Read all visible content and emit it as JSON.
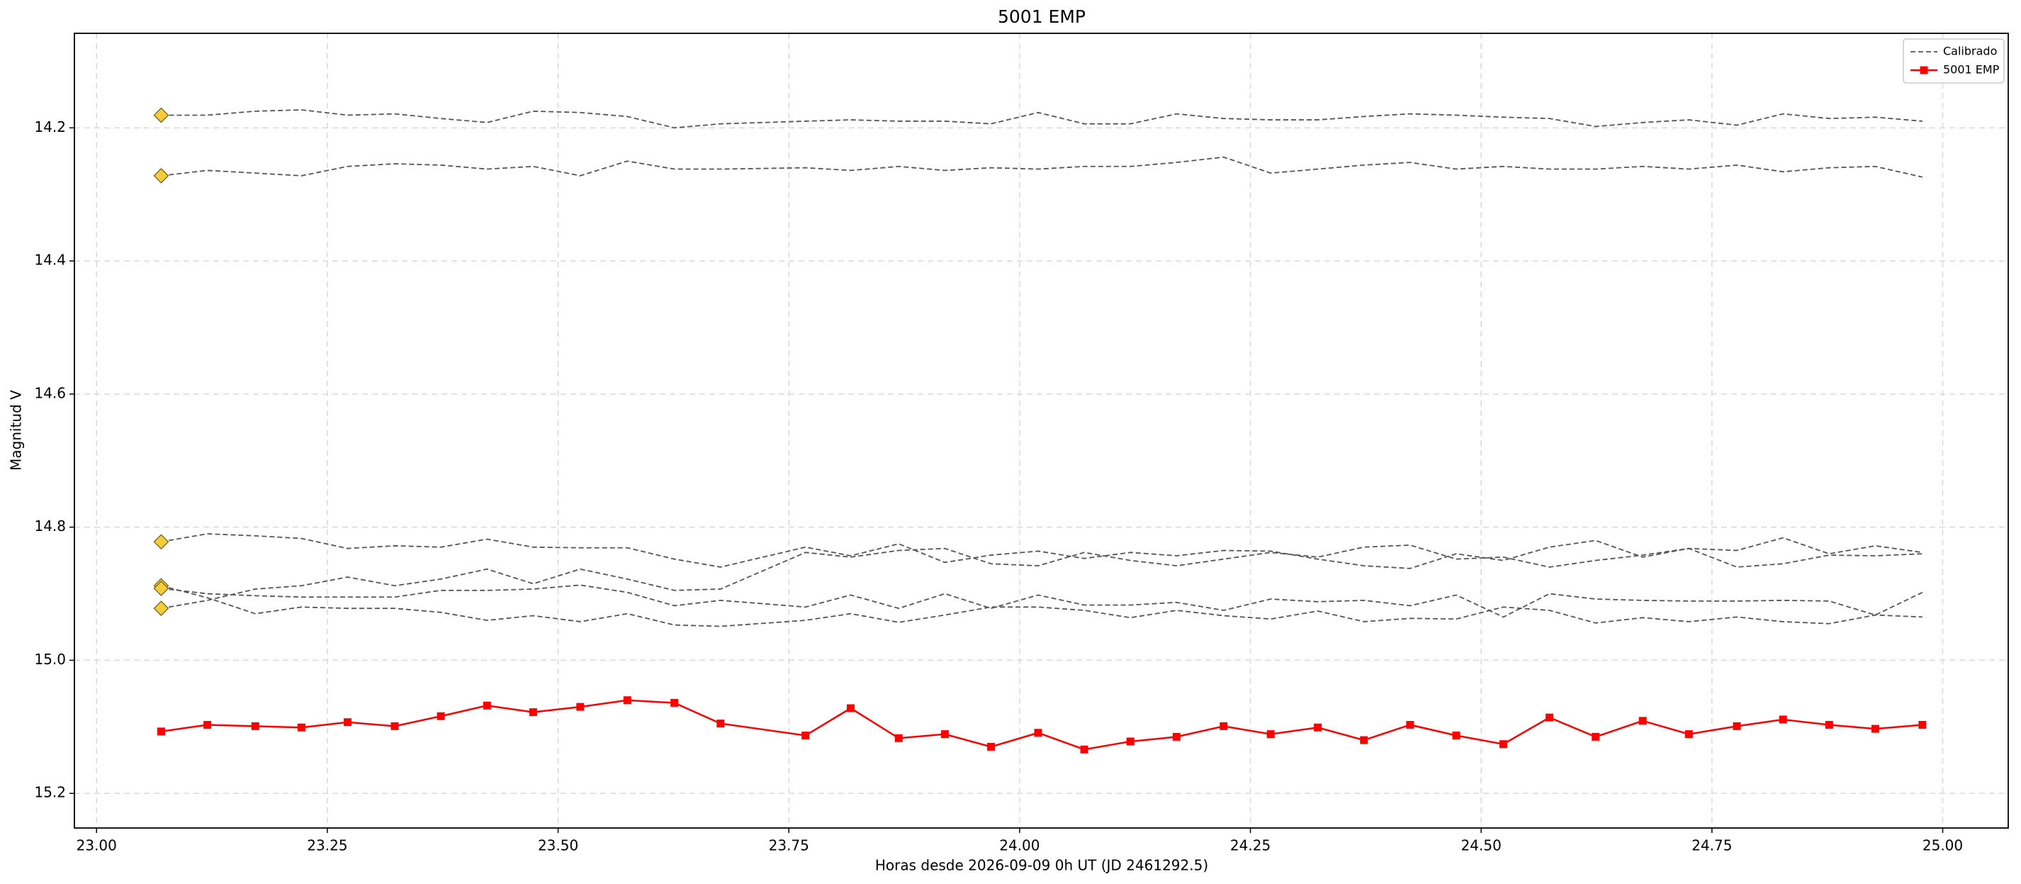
{
  "chart_data": {
    "type": "line",
    "title": "5001 EMP",
    "x_label": "Horas desde 2026-09-09 0h UT (JD 2461292.5)",
    "y_label": "Magnitud V",
    "xlim": [
      22.976,
      25.071
    ],
    "ylim": [
      14.058,
      15.252
    ],
    "y_inverted": true,
    "grid": true,
    "legend": "upper right",
    "xticks": [
      {
        "value": 23,
        "label": "23.00"
      },
      {
        "value": 23.25,
        "label": "23.25"
      },
      {
        "value": 23.5,
        "label": "23.50"
      },
      {
        "value": 23.75,
        "label": "23.75"
      },
      {
        "value": 24,
        "label": "24.00"
      },
      {
        "value": 24.25,
        "label": "24.25"
      },
      {
        "value": 24.5,
        "label": "24.50"
      },
      {
        "value": 24.75,
        "label": "24.75"
      },
      {
        "value": 25,
        "label": "25.00"
      }
    ],
    "yticks": [
      14.2,
      14.4,
      14.6,
      14.8,
      {
        "value": 15,
        "label": "15.0"
      },
      15.2
    ],
    "x": [
      23.07,
      23.12,
      23.172,
      23.222,
      23.272,
      23.323,
      23.373,
      23.423,
      23.473,
      23.524,
      23.575,
      23.626,
      23.676,
      23.768,
      23.817,
      23.869,
      23.919,
      23.969,
      24.02,
      24.07,
      24.12,
      24.17,
      24.221,
      24.272,
      24.323,
      24.373,
      24.423,
      24.473,
      24.524,
      24.574,
      24.624,
      24.675,
      24.725,
      24.777,
      24.827,
      24.877,
      24.927,
      24.978
    ],
    "series": [
      {
        "name": "Calibrado",
        "color": "#555555",
        "dashed": true,
        "start_marker_color": "#f5cd3a",
        "lines": [
          [
            14.181,
            14.181,
            14.175,
            14.173,
            14.181,
            14.179,
            14.186,
            14.192,
            14.175,
            14.177,
            14.183,
            14.2,
            14.194,
            14.19,
            14.188,
            14.19,
            14.19,
            14.194,
            14.177,
            14.194,
            14.194,
            14.179,
            14.186,
            14.188,
            14.188,
            14.183,
            14.179,
            14.181,
            14.184,
            14.186,
            14.198,
            14.192,
            14.188,
            14.196,
            14.179,
            14.186,
            14.184,
            14.19
          ],
          [
            14.272,
            14.264,
            14.268,
            14.272,
            14.258,
            14.254,
            14.256,
            14.262,
            14.258,
            14.272,
            14.25,
            14.262,
            14.262,
            14.26,
            14.264,
            14.258,
            14.264,
            14.26,
            14.262,
            14.258,
            14.258,
            14.252,
            14.244,
            14.268,
            14.262,
            14.256,
            14.252,
            14.262,
            14.258,
            14.262,
            14.262,
            14.258,
            14.262,
            14.256,
            14.266,
            14.26,
            14.258,
            14.274
          ],
          [
            14.822,
            14.81,
            14.813,
            14.817,
            14.832,
            14.828,
            14.83,
            14.818,
            14.83,
            14.831,
            14.831,
            14.848,
            14.86,
            14.83,
            14.843,
            14.825,
            14.853,
            14.842,
            14.836,
            14.847,
            14.838,
            14.843,
            14.835,
            14.836,
            14.848,
            14.858,
            14.862,
            14.84,
            14.85,
            14.83,
            14.82,
            14.845,
            14.832,
            14.835,
            14.816,
            14.84,
            14.828,
            14.838
          ],
          [
            14.888,
            14.906,
            14.93,
            14.92,
            14.922,
            14.922,
            14.928,
            14.94,
            14.933,
            14.942,
            14.93,
            14.947,
            14.949,
            14.94,
            14.93,
            14.943,
            14.932,
            14.92,
            14.92,
            14.925,
            14.936,
            14.925,
            14.933,
            14.938,
            14.926,
            14.942,
            14.937,
            14.938,
            14.92,
            14.925,
            14.944,
            14.936,
            14.942,
            14.935,
            14.942,
            14.945,
            14.932,
            14.935
          ],
          [
            14.892,
            14.9,
            14.903,
            14.905,
            14.905,
            14.905,
            14.895,
            14.895,
            14.893,
            14.887,
            14.898,
            14.918,
            14.91,
            14.92,
            14.902,
            14.922,
            14.9,
            14.922,
            14.902,
            14.917,
            14.917,
            14.913,
            14.925,
            14.908,
            14.912,
            14.91,
            14.918,
            14.902,
            14.935,
            14.9,
            14.908,
            14.91,
            14.911,
            14.911,
            14.91,
            14.911,
            14.932,
            14.898
          ],
          [
            14.922,
            14.91,
            14.893,
            14.888,
            14.875,
            14.888,
            14.878,
            14.863,
            14.885,
            14.863,
            14.878,
            14.895,
            14.893,
            14.838,
            14.845,
            14.835,
            14.832,
            14.855,
            14.858,
            14.838,
            14.85,
            14.858,
            14.848,
            14.838,
            14.845,
            14.83,
            14.827,
            14.848,
            14.845,
            14.86,
            14.85,
            14.842,
            14.832,
            14.86,
            14.855,
            14.842,
            14.843,
            14.84
          ]
        ]
      },
      {
        "name": "5001 EMP",
        "color": "#ff0000",
        "marker": "square",
        "values": [
          15.107,
          15.097,
          15.099,
          15.101,
          15.093,
          15.099,
          15.084,
          15.068,
          15.078,
          15.07,
          15.06,
          15.064,
          15.095,
          15.113,
          15.072,
          15.117,
          15.111,
          15.13,
          15.109,
          15.134,
          15.122,
          15.115,
          15.099,
          15.111,
          15.101,
          15.12,
          15.097,
          15.113,
          15.126,
          15.086,
          15.115,
          15.091,
          15.111,
          15.099,
          15.089,
          15.097,
          15.103,
          15.097
        ]
      }
    ]
  }
}
